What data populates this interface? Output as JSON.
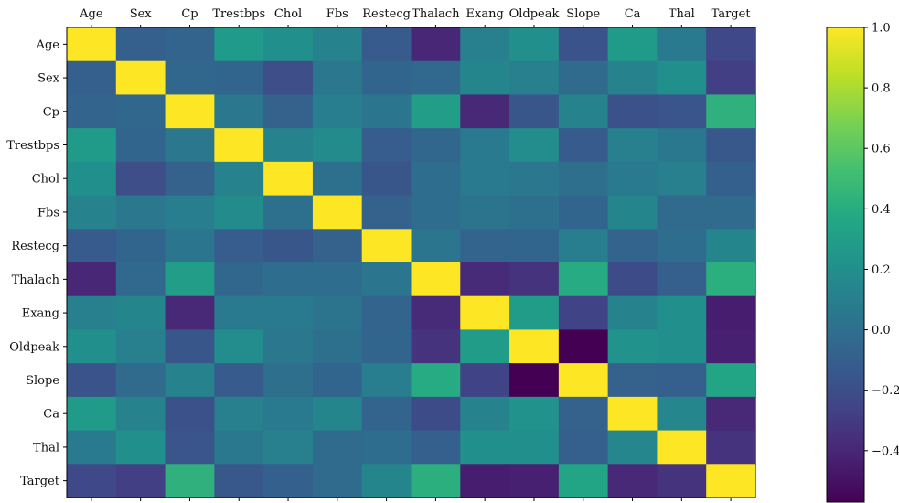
{
  "chart_data": {
    "type": "heatmap",
    "title": "",
    "variables": [
      "Age",
      "Sex",
      "Cp",
      "Trestbps",
      "Chol",
      "Fbs",
      "Restecg",
      "Thalach",
      "Exang",
      "Oldpeak",
      "Slope",
      "Ca",
      "Thal",
      "Target"
    ],
    "colormap": "viridis",
    "value_range": [
      -0.57,
      1.0
    ],
    "colorbar_ticks": [
      "1.0",
      "0.8",
      "0.6",
      "0.4",
      "0.2",
      "0.0",
      "−0.2",
      "−0.4"
    ],
    "colorbar_tick_values": [
      1.0,
      0.8,
      0.6,
      0.4,
      0.2,
      0.0,
      -0.2,
      -0.4
    ],
    "matrix": [
      [
        1.0,
        -0.1,
        -0.07,
        0.28,
        0.21,
        0.12,
        -0.12,
        -0.4,
        0.1,
        0.21,
        -0.17,
        0.28,
        0.07,
        -0.23
      ],
      [
        -0.1,
        1.0,
        -0.05,
        -0.06,
        -0.2,
        0.05,
        -0.06,
        -0.04,
        0.14,
        0.1,
        -0.03,
        0.12,
        0.21,
        -0.28
      ],
      [
        -0.07,
        -0.05,
        1.0,
        0.05,
        -0.08,
        0.09,
        0.04,
        0.3,
        -0.39,
        -0.15,
        0.12,
        -0.18,
        -0.16,
        0.43
      ],
      [
        0.28,
        -0.06,
        0.05,
        1.0,
        0.12,
        0.18,
        -0.11,
        -0.05,
        0.07,
        0.19,
        -0.12,
        0.1,
        0.06,
        -0.14
      ],
      [
        0.21,
        -0.2,
        -0.08,
        0.12,
        1.0,
        0.01,
        -0.15,
        -0.01,
        0.07,
        0.05,
        -0.0,
        0.07,
        0.1,
        -0.09
      ],
      [
        0.12,
        0.05,
        0.09,
        0.18,
        0.01,
        1.0,
        -0.08,
        -0.01,
        0.03,
        0.01,
        -0.06,
        0.14,
        -0.03,
        -0.03
      ],
      [
        -0.12,
        -0.06,
        0.04,
        -0.11,
        -0.15,
        -0.08,
        1.0,
        0.04,
        -0.07,
        -0.06,
        0.09,
        -0.07,
        -0.01,
        0.14
      ],
      [
        -0.4,
        -0.04,
        0.3,
        -0.05,
        -0.01,
        -0.01,
        0.04,
        1.0,
        -0.38,
        -0.34,
        0.39,
        -0.21,
        -0.1,
        0.42
      ],
      [
        0.1,
        0.14,
        -0.39,
        0.07,
        0.07,
        0.03,
        -0.07,
        -0.38,
        1.0,
        0.29,
        -0.26,
        0.12,
        0.21,
        -0.44
      ],
      [
        0.21,
        0.1,
        -0.15,
        0.19,
        0.05,
        0.01,
        -0.06,
        -0.34,
        0.29,
        1.0,
        -0.58,
        0.22,
        0.21,
        -0.43
      ],
      [
        -0.17,
        -0.03,
        0.12,
        -0.12,
        -0.0,
        -0.06,
        0.09,
        0.39,
        -0.26,
        -0.58,
        1.0,
        -0.08,
        -0.1,
        0.35
      ],
      [
        0.28,
        0.12,
        -0.18,
        0.1,
        0.07,
        0.14,
        -0.07,
        -0.21,
        0.12,
        0.22,
        -0.08,
        1.0,
        0.15,
        -0.39
      ],
      [
        0.07,
        0.21,
        -0.16,
        0.06,
        0.1,
        -0.03,
        -0.01,
        -0.1,
        0.21,
        0.21,
        -0.1,
        0.15,
        1.0,
        -0.34
      ],
      [
        -0.23,
        -0.28,
        0.43,
        -0.14,
        -0.09,
        -0.03,
        0.14,
        0.42,
        -0.44,
        -0.43,
        0.35,
        -0.39,
        -0.34,
        1.0
      ]
    ]
  }
}
